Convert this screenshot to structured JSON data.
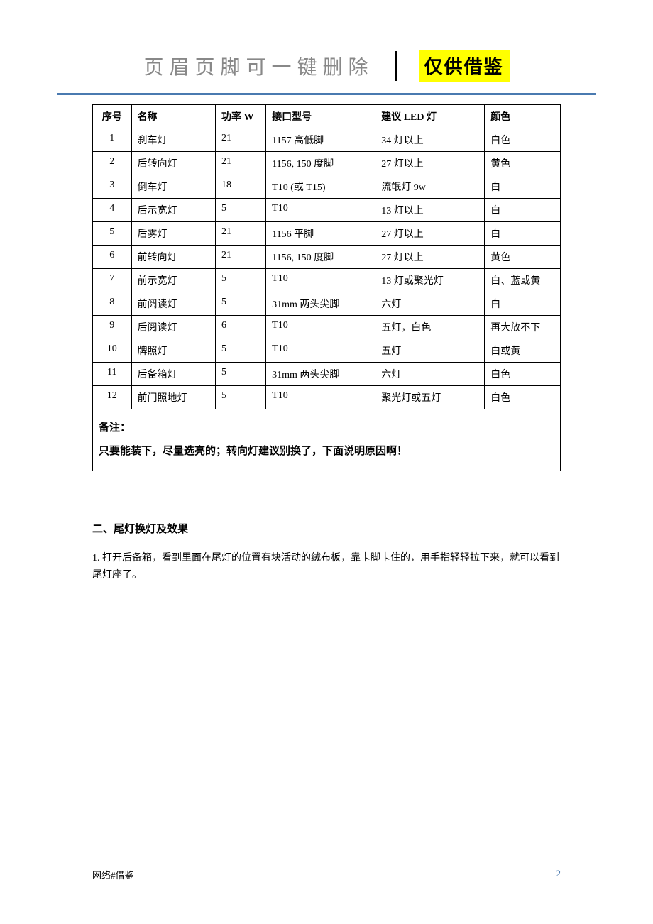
{
  "header": {
    "title": "页眉页脚可一键删除",
    "badge": "仅供借鉴",
    "rule_color": "#4a7ab0"
  },
  "table": {
    "columns": [
      "序号",
      "名称",
      "功率 W",
      "接口型号",
      "建议 LED 灯",
      "颜色"
    ],
    "rows": [
      [
        "1",
        "刹车灯",
        "21",
        "1157 高低脚",
        "34 灯以上",
        "白色"
      ],
      [
        "2",
        "后转向灯",
        "21",
        "1156, 150 度脚",
        "27 灯以上",
        "黄色"
      ],
      [
        "3",
        "倒车灯",
        "18",
        "T10 (或 T15)",
        "流氓灯 9w",
        "白"
      ],
      [
        "4",
        "后示宽灯",
        "5",
        "T10",
        "13 灯以上",
        "白"
      ],
      [
        "5",
        "后雾灯",
        "21",
        "1156 平脚",
        "27 灯以上",
        "白"
      ],
      [
        "6",
        "前转向灯",
        "21",
        "1156, 150 度脚",
        "27 灯以上",
        "黄色"
      ],
      [
        "7",
        "前示宽灯",
        "5",
        "T10",
        "13 灯或聚光灯",
        "白、蓝或黄"
      ],
      [
        "8",
        "前阅读灯",
        "5",
        "31mm 两头尖脚",
        "六灯",
        "白"
      ],
      [
        "9",
        "后阅读灯",
        "6",
        "T10",
        "五灯，白色",
        "再大放不下"
      ],
      [
        "10",
        "牌照灯",
        "5",
        "T10",
        "五灯",
        "白或黄"
      ],
      [
        "11",
        "后备箱灯",
        "5",
        "31mm 两头尖脚",
        "六灯",
        "白色"
      ],
      [
        "12",
        "前门照地灯",
        "5",
        "T10",
        "聚光灯或五灯",
        "白色"
      ]
    ],
    "note_label": "备注：",
    "note_text": "只要能装下，尽量选亮的；转向灯建议别换了，下面说明原因啊！"
  },
  "section2": {
    "title": "二、尾灯换灯及效果",
    "para1": "1. 打开后备箱，看到里面在尾灯的位置有块活动的绒布板，靠卡脚卡住的，用手指轻轻拉下来，就可以看到尾灯座了。"
  },
  "footer": {
    "left": "网络#借鉴",
    "page": "2",
    "page_color": "#4a7ab0"
  }
}
